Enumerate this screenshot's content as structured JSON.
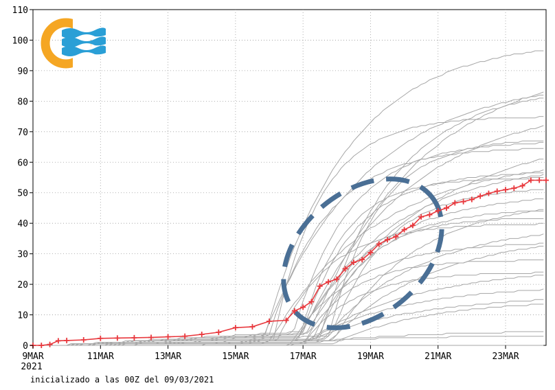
{
  "chart_data": {
    "type": "line",
    "title": "",
    "xlabel": "",
    "ylabel": "",
    "ylim": [
      0,
      110
    ],
    "yticks": [
      0,
      10,
      20,
      30,
      40,
      50,
      60,
      70,
      80,
      90,
      100,
      110
    ],
    "xlim": [
      9,
      24.2
    ],
    "xticks": [
      {
        "x": 9,
        "label": "9MAR",
        "sublabel": "2021"
      },
      {
        "x": 11,
        "label": "11MAR"
      },
      {
        "x": 13,
        "label": "13MAR"
      },
      {
        "x": 15,
        "label": "15MAR"
      },
      {
        "x": 17,
        "label": "17MAR"
      },
      {
        "x": 19,
        "label": "19MAR"
      },
      {
        "x": 21,
        "label": "21MAR"
      },
      {
        "x": 23,
        "label": "23MAR"
      }
    ],
    "grid": true,
    "colors": {
      "members": "#a6a6a6",
      "mean": "#e8383d",
      "ellipse": "#4a6f95",
      "logo_orange": "#f5a623",
      "logo_blue": "#2a9fd6"
    },
    "ensemble_final_values": [
      0,
      3,
      5,
      15,
      17,
      20,
      24,
      26,
      28,
      34,
      37,
      40,
      40,
      42,
      45,
      48,
      50,
      52,
      55,
      57,
      60,
      62,
      65,
      67,
      68,
      71,
      75,
      80,
      85,
      88,
      94,
      100
    ],
    "series": [
      {
        "values_x": [
          9.0,
          9.25,
          9.5,
          9.75,
          10.0,
          10.5,
          11.0,
          11.5,
          12.0,
          12.5,
          13.0,
          13.5,
          14.0,
          14.5,
          15.0,
          15.5,
          16.0,
          16.5,
          16.75,
          17.0,
          17.25,
          17.5,
          17.75,
          18.0,
          18.25,
          18.5,
          18.75,
          19.0,
          19.25,
          19.5,
          19.75,
          20.0,
          20.25,
          20.5,
          20.75,
          21.0,
          21.25,
          21.5,
          21.75,
          22.0,
          22.25,
          22.5,
          22.75,
          23.0,
          23.25,
          23.5,
          23.75,
          24.0,
          24.2
        ],
        "values_y": [
          0.0,
          0.0,
          0.3,
          1.5,
          1.6,
          1.8,
          2.3,
          2.4,
          2.5,
          2.6,
          2.8,
          3.0,
          3.6,
          4.3,
          5.8,
          6.1,
          7.9,
          8.2,
          11.3,
          12.5,
          14.3,
          19.4,
          20.8,
          21.7,
          25.1,
          27.2,
          28.1,
          30.4,
          33.2,
          34.6,
          35.6,
          37.9,
          39.3,
          42.1,
          42.8,
          44.1,
          45.0,
          46.7,
          47.1,
          47.8,
          48.9,
          49.8,
          50.5,
          51.0,
          51.5,
          52.3,
          54.1,
          54.1,
          54.1
        ]
      }
    ]
  },
  "footer": {
    "text": "inicializado a las 00Z del 09/03/2021"
  }
}
